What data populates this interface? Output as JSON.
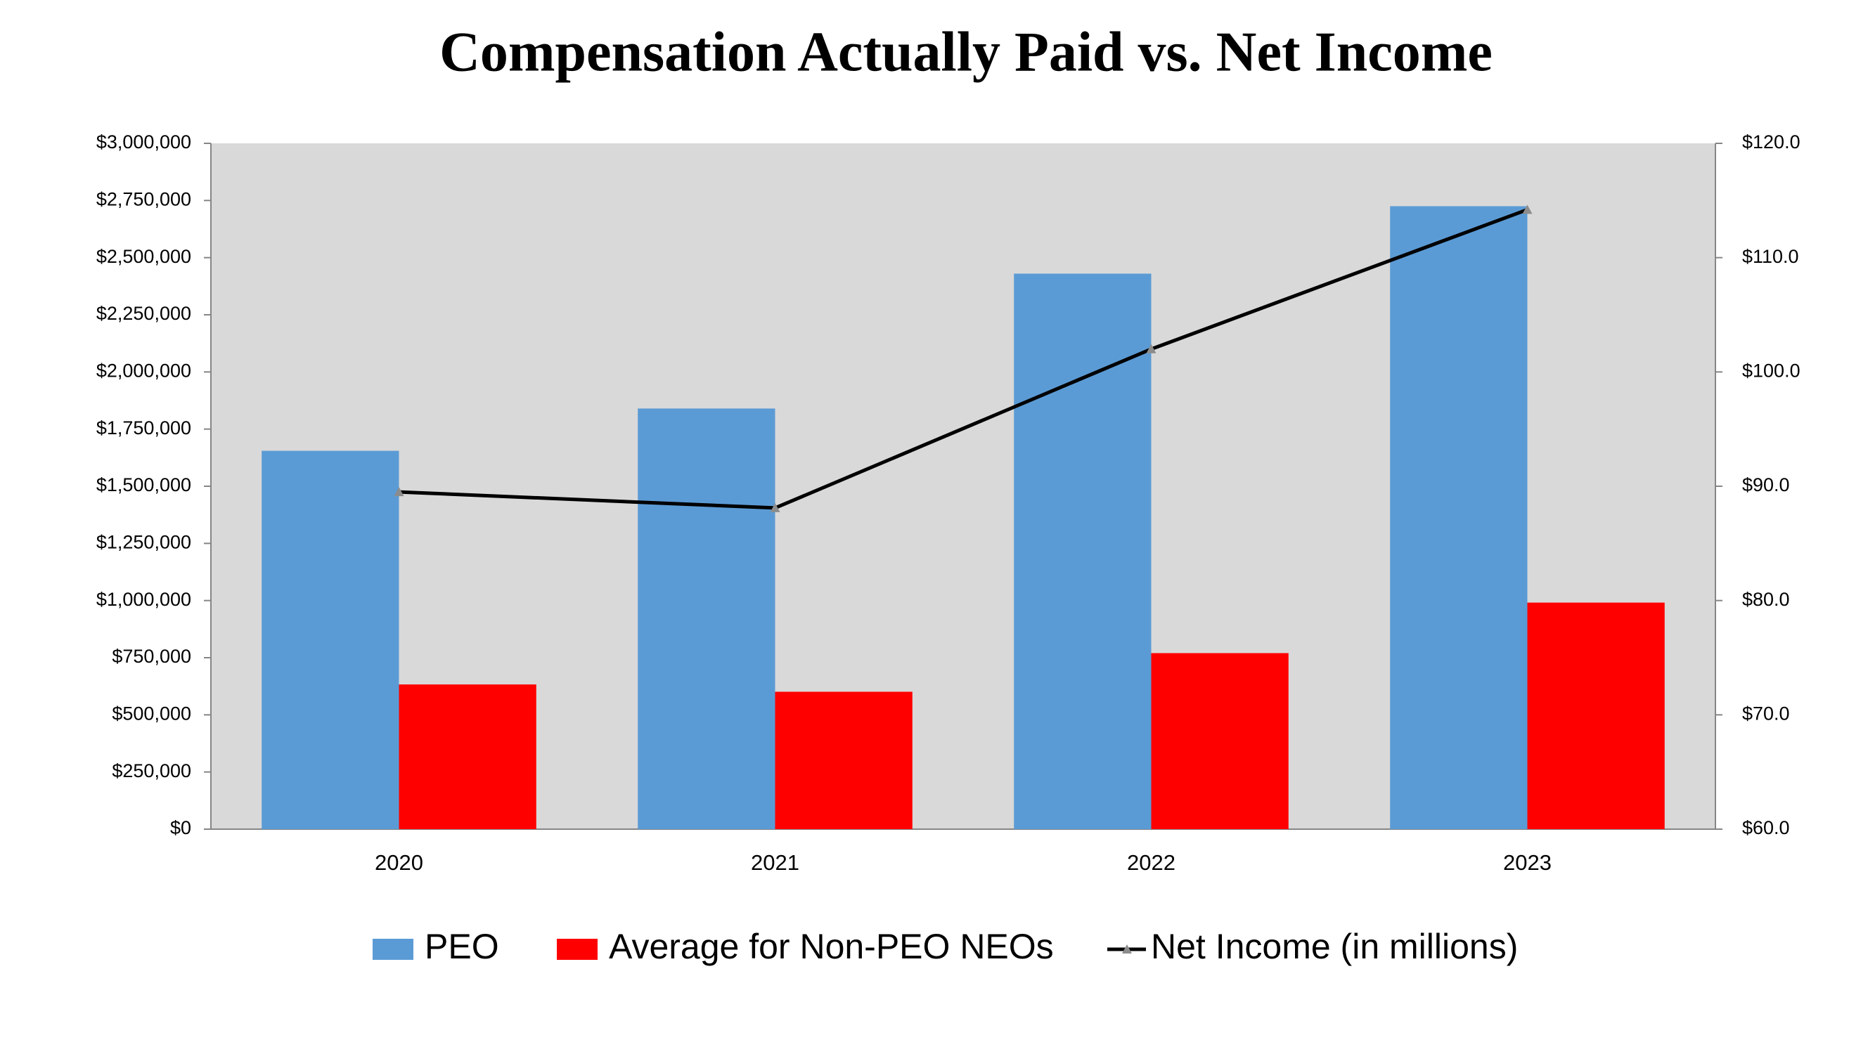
{
  "chart_data": {
    "type": "bar-line",
    "title": "Compensation Actually Paid vs. Net Income",
    "categories": [
      "2020",
      "2021",
      "2022",
      "2023"
    ],
    "series": [
      {
        "name": "PEO",
        "color": "#5b9bd5",
        "type": "bar",
        "values": [
          1655000,
          1840000,
          2430000,
          2725000
        ]
      },
      {
        "name": "Average for Non-PEO NEOs",
        "color": "#ff0000",
        "type": "bar",
        "values": [
          633000,
          601000,
          770000,
          991000
        ]
      },
      {
        "name": "Net Income (in millions)",
        "color": "#000000",
        "type": "line",
        "axis": "y2",
        "values": [
          89.5,
          88.1,
          102.0,
          114.2
        ]
      }
    ],
    "ylim": [
      0,
      3000000
    ],
    "yticks": [
      {
        "value": 0,
        "label": "$0"
      },
      {
        "value": 250000,
        "label": "$250,000"
      },
      {
        "value": 500000,
        "label": "$500,000"
      },
      {
        "value": 750000,
        "label": "$750,000"
      },
      {
        "value": 1000000,
        "label": "$1,000,000"
      },
      {
        "value": 1250000,
        "label": "$1,250,000"
      },
      {
        "value": 1500000,
        "label": "$1,500,000"
      },
      {
        "value": 1750000,
        "label": "$1,750,000"
      },
      {
        "value": 2000000,
        "label": "$2,000,000"
      },
      {
        "value": 2250000,
        "label": "$2,250,000"
      },
      {
        "value": 2500000,
        "label": "$2,500,000"
      },
      {
        "value": 2750000,
        "label": "$2,750,000"
      },
      {
        "value": 3000000,
        "label": "$3,000,000"
      }
    ],
    "y2lim": [
      60,
      120
    ],
    "y2ticks": [
      {
        "value": 60,
        "label": "$60.0"
      },
      {
        "value": 70,
        "label": "$70.0"
      },
      {
        "value": 80,
        "label": "$80.0"
      },
      {
        "value": 90,
        "label": "$90.0"
      },
      {
        "value": 100,
        "label": "$100.0"
      },
      {
        "value": 110,
        "label": "$110.0"
      },
      {
        "value": 120,
        "label": "$120.0"
      }
    ],
    "legend": "bottom"
  }
}
